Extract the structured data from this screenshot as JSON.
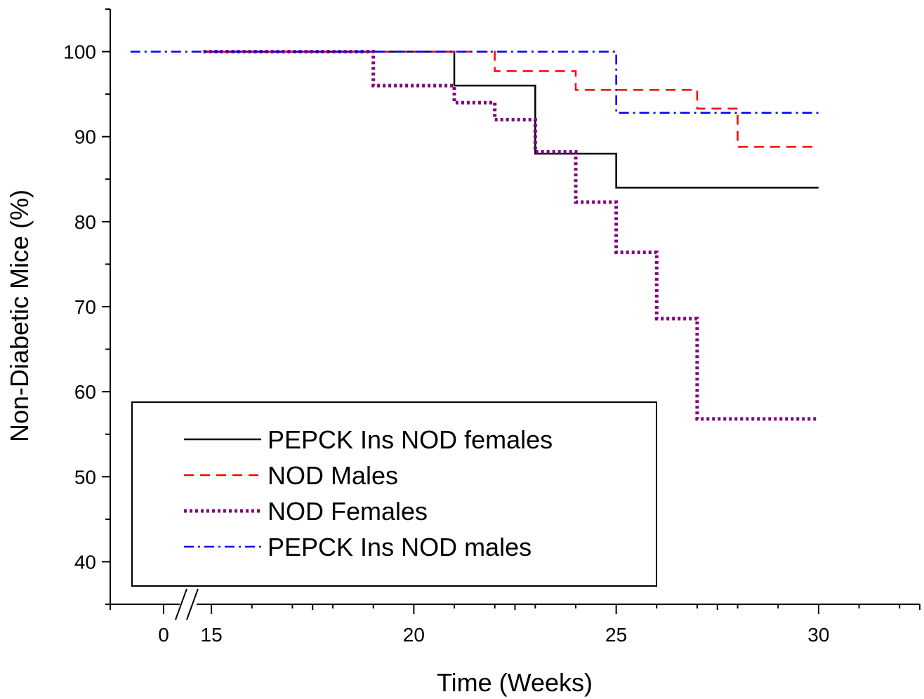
{
  "chart_data": {
    "type": "line",
    "step": true,
    "xlabel": "Time (Weeks)",
    "ylabel": "Non-Diabetic Mice (%)",
    "xlim": [
      12.5,
      32.5
    ],
    "ylim": [
      35,
      105
    ],
    "x_break": {
      "before": 0,
      "after": 15
    },
    "x_ticks": [
      15,
      20,
      25,
      30
    ],
    "x_break_label": "0",
    "y_ticks": [
      40,
      50,
      60,
      70,
      80,
      90,
      100
    ],
    "legend_position": "bottom-left",
    "grid": false,
    "series": [
      {
        "name": "PEPCK Ins NOD females",
        "color": "#000000",
        "dash": "solid",
        "x": [
          14.8,
          21,
          23,
          25,
          30
        ],
        "y": [
          100,
          96,
          88,
          84,
          84
        ]
      },
      {
        "name": "NOD Males",
        "color": "#ff0000",
        "dash": "dashed",
        "x": [
          14.8,
          22,
          24,
          27,
          28,
          30
        ],
        "y": [
          100,
          97.7,
          95.5,
          93.3,
          88.8,
          88.8
        ]
      },
      {
        "name": "NOD Females",
        "color": "#800080",
        "dash": "dotted",
        "x": [
          14.8,
          19,
          21,
          22,
          23,
          24,
          25,
          26,
          27,
          30
        ],
        "y": [
          100,
          96,
          94,
          92,
          88.2,
          82.3,
          76.4,
          68.6,
          56.8,
          56.8
        ]
      },
      {
        "name": "PEPCK Ins NOD males",
        "color": "#0000ff",
        "dash": "dashdot",
        "x": [
          13,
          25,
          30
        ],
        "y": [
          100,
          92.8,
          92.8
        ]
      }
    ]
  }
}
